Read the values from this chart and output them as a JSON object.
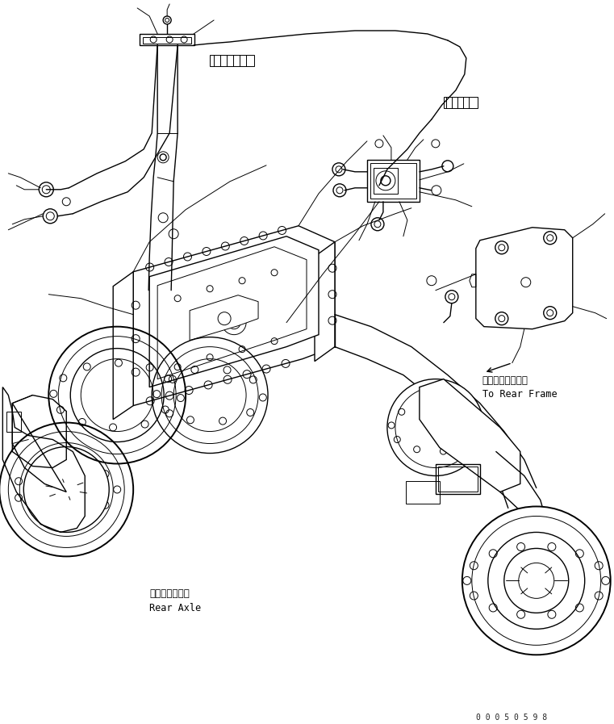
{
  "bg_color": "#ffffff",
  "line_color": "#000000",
  "text_color": "#000000",
  "figsize": [
    7.61,
    8.97
  ],
  "dpi": 100,
  "label_rear_axle_jp": "リヤーアクスル",
  "label_rear_axle_en": "Rear Axle",
  "label_rear_frame_jp": "リヤーフレームへ",
  "label_rear_frame_en": "To Rear Frame",
  "watermark": "0 0 0 5 0 5 9 8"
}
